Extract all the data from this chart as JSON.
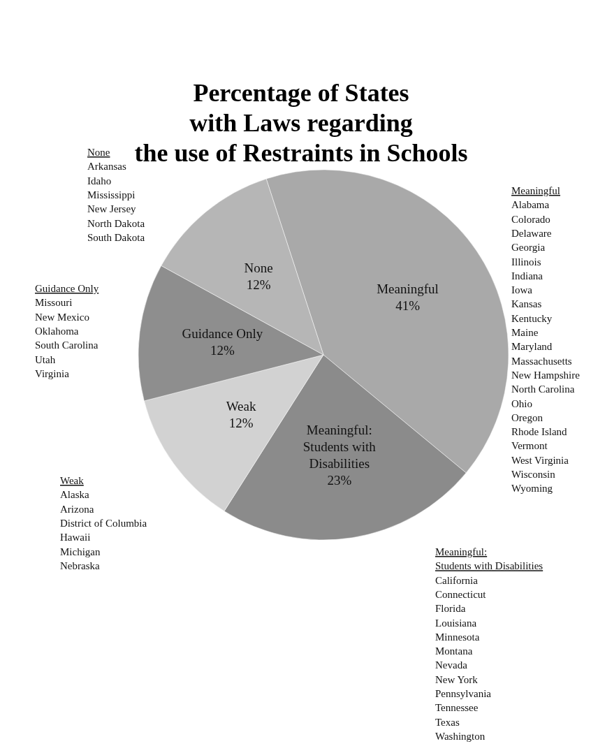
{
  "chart_data": {
    "type": "pie",
    "title": "Percentage of States\nwith Laws regarding\nthe use of Restraints in Schools",
    "categories": [
      "Meaningful",
      "Meaningful: Students with Disabilities",
      "Weak",
      "Guidance Only",
      "None"
    ],
    "values": [
      41,
      23,
      12,
      12,
      12
    ],
    "colors": [
      "#a9a9a9",
      "#8b8b8b",
      "#d2d2d2",
      "#8e8e8e",
      "#b6b6b6"
    ],
    "value_labels": [
      "41%",
      "23%",
      "12%",
      "12%",
      "12%"
    ],
    "annotations": [
      "None\n\nArkansas\nIdaho\nMississippi\nNew Jersey\nNorth Dakota\nSouth Dakota",
      "Guidance Only\n\nMissouri\nNew Mexico\nOklahoma\nSouth Carolina\nUtah\nVirginia",
      "Weak\n\nAlaska\nArizona\nDistrict of Columbia\nHawaii\nMichigan\nNebraska",
      "Meaningful\n\nAlabama\nColorado\nDelaware\nGeorgia\nIllinois\nIndiana\nIowa\nKansas\nKentucky\nMaine\nMaryland\nMassachusetts\nNew Hampshire\nNorth Carolina\nOhio\nOregon\nRhode Island\nVermont\nWest Virginia\nWisconsin\nWyoming",
      "Meaningful:\nStudents with Disabilities\n\nCalifornia\nConnecticut\nFlorida\nLouisiana\nMinnesota\nMontana\nNevada\nNew York\nPennsylvania\nTennessee\nTexas\nWashington"
    ]
  }
}
